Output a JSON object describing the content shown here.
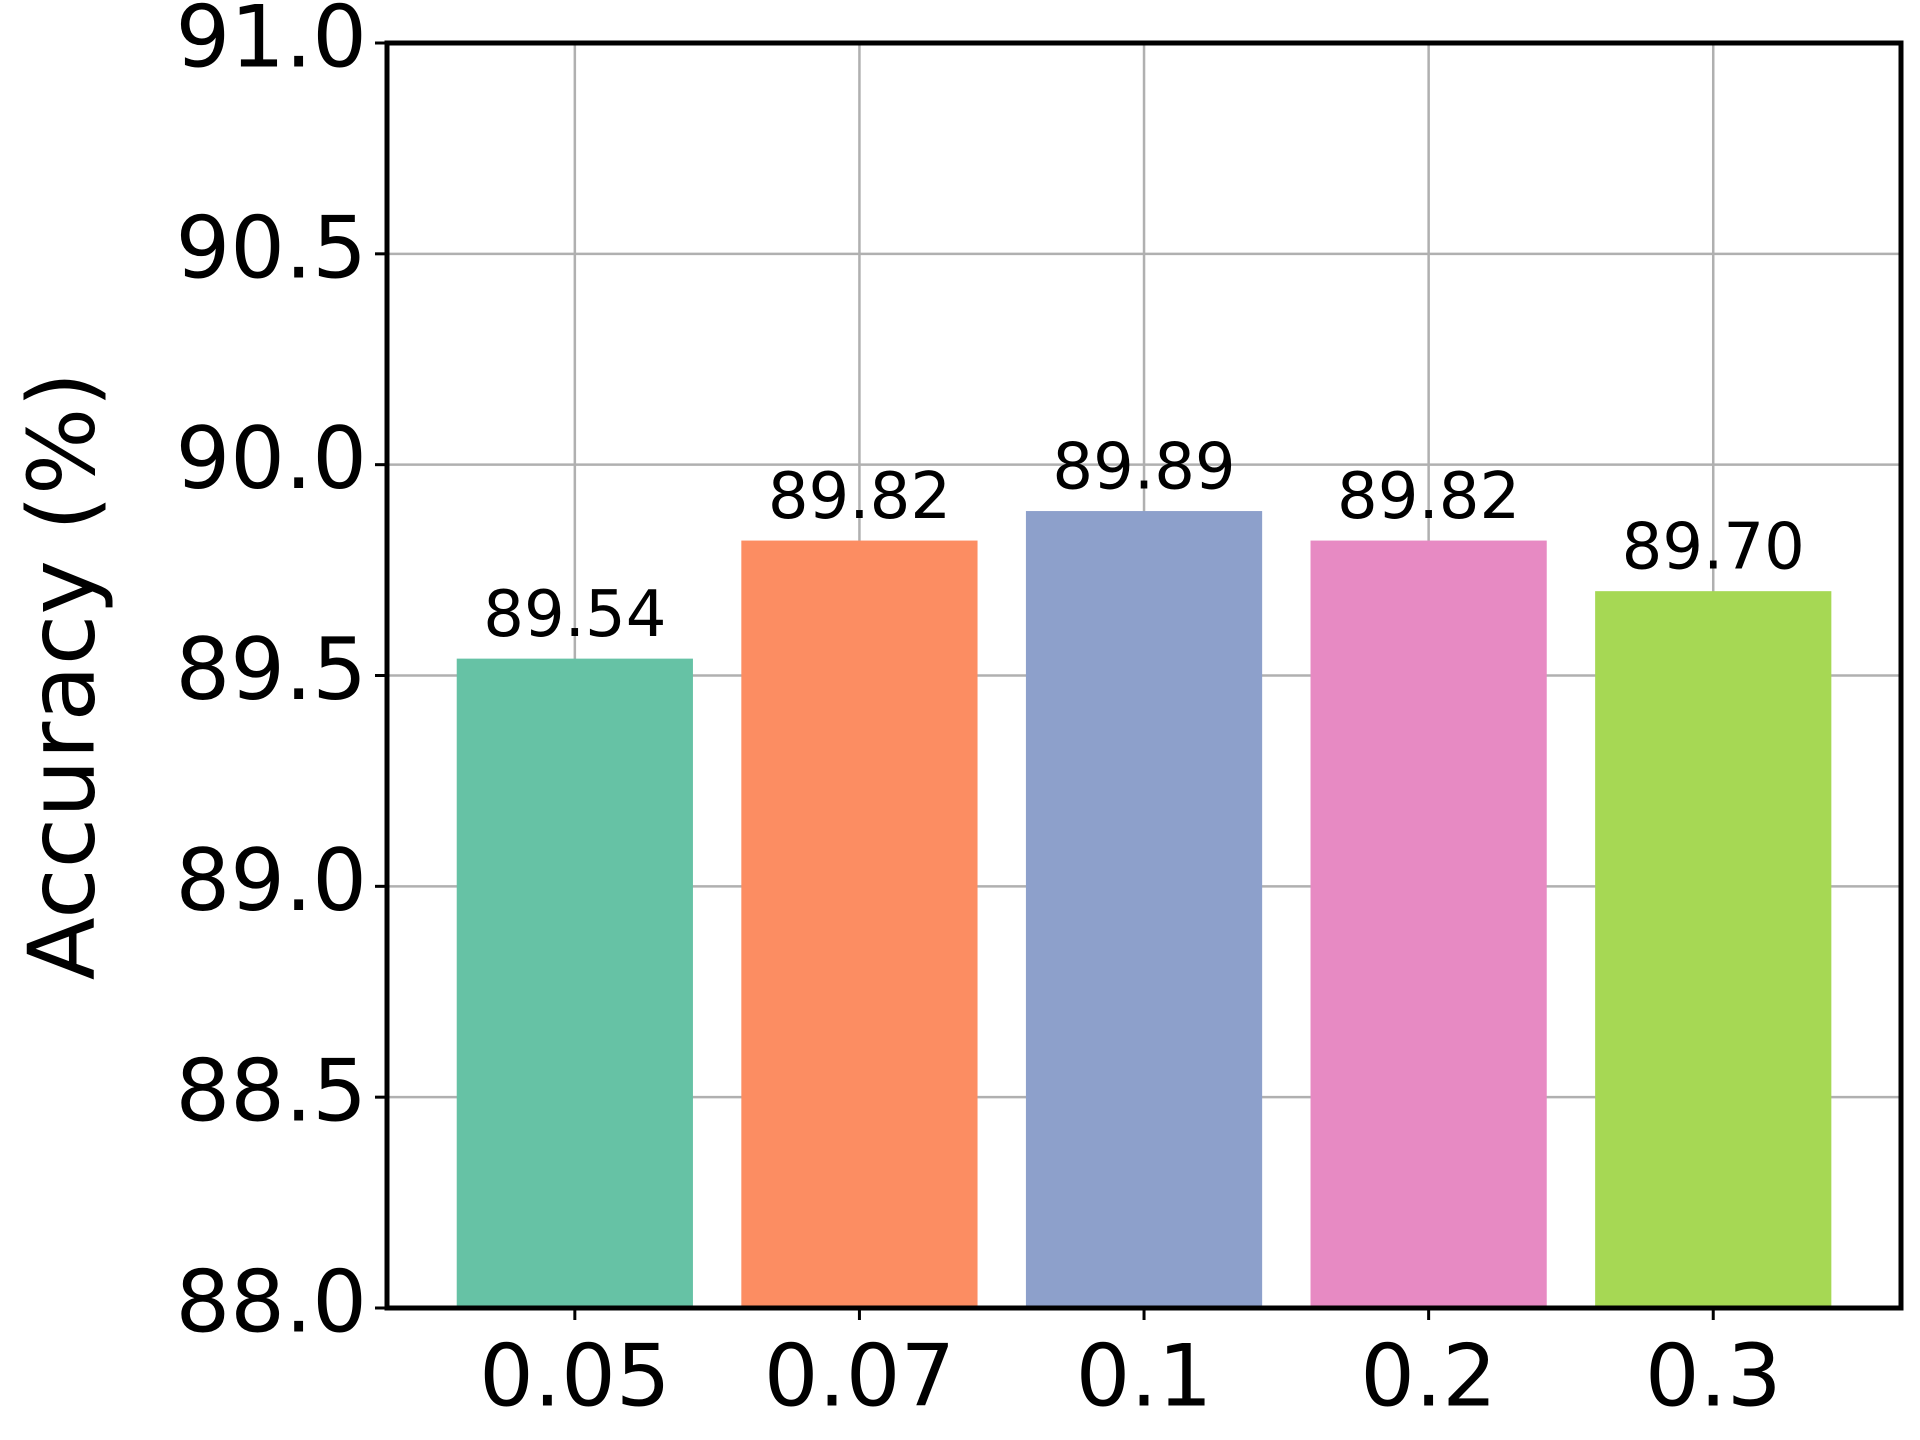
{
  "chart_data": {
    "type": "bar",
    "ylabel": "Accuracy (%)",
    "categories": [
      "0.05",
      "0.07",
      "0.1",
      "0.2",
      "0.3"
    ],
    "values": [
      89.54,
      89.82,
      89.89,
      89.82,
      89.7
    ],
    "value_labels": [
      "89.54",
      "89.82",
      "89.89",
      "89.82",
      "89.70"
    ],
    "colors": [
      "#66c2a5",
      "#fc8d62",
      "#8da0cb",
      "#e78ac3",
      "#a6d854"
    ],
    "ylim": [
      88,
      91
    ],
    "yticks": [
      {
        "value": 88,
        "label": "88.0"
      },
      {
        "value": 88.5,
        "label": "88.5"
      },
      {
        "value": 89,
        "label": "89.0"
      },
      {
        "value": 89.5,
        "label": "89.5"
      },
      {
        "value": 90,
        "label": "90.0"
      },
      {
        "value": 90.5,
        "label": "90.5"
      },
      {
        "value": 91,
        "label": "91.0"
      }
    ],
    "grid": true
  }
}
